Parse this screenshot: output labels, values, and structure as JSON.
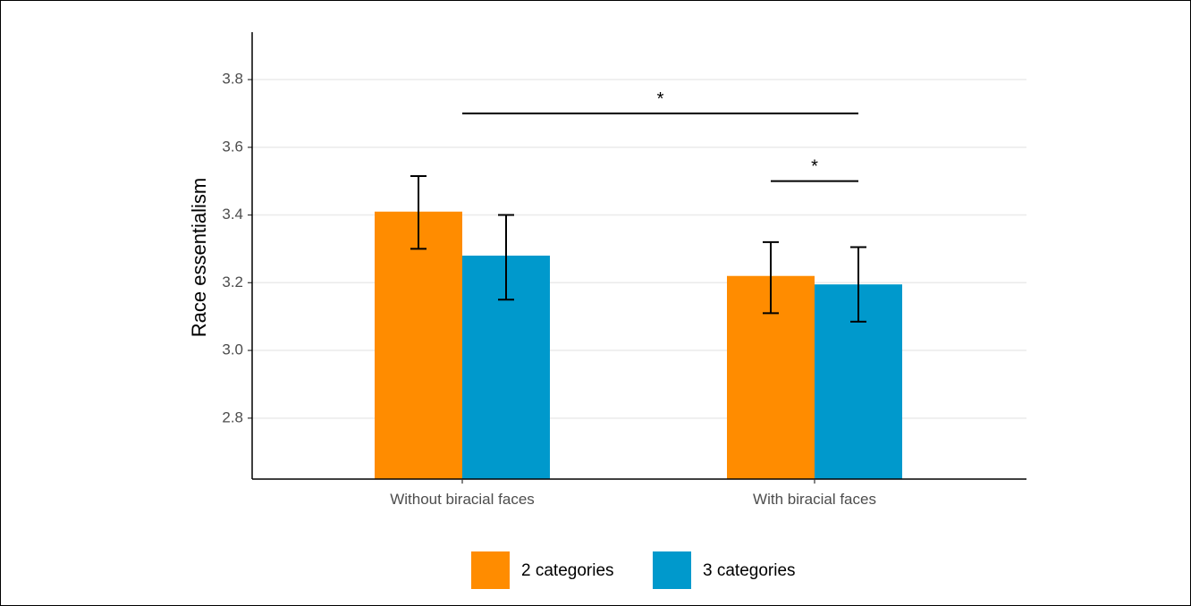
{
  "chart_data": {
    "type": "bar",
    "ylabel": "Race essentialism",
    "ylim": [
      2.62,
      3.94
    ],
    "yticks": [
      "2.8",
      "3.0",
      "3.2",
      "3.4",
      "3.6",
      "3.8"
    ],
    "grid": "horizontal",
    "legend_position": "bottom",
    "categories": [
      "Without biracial faces",
      "With biracial faces"
    ],
    "series": [
      {
        "name": "2 categories",
        "color": "#FF8C00",
        "values": [
          3.41,
          3.22
        ],
        "error_low": [
          3.3,
          3.11
        ],
        "error_high": [
          3.515,
          3.32
        ]
      },
      {
        "name": "3 categories",
        "color": "#0099CC",
        "values": [
          3.28,
          3.195
        ],
        "error_low": [
          3.15,
          3.085
        ],
        "error_high": [
          3.4,
          3.305
        ]
      }
    ],
    "annotations": [
      {
        "label": "*",
        "y": 3.7,
        "from": {
          "category": 0,
          "series": 0.5
        },
        "to": {
          "category": 1,
          "series": 1
        }
      },
      {
        "label": "*",
        "y": 3.5,
        "from": {
          "category": 1,
          "series": 0
        },
        "to": {
          "category": 1,
          "series": 1
        }
      }
    ]
  }
}
